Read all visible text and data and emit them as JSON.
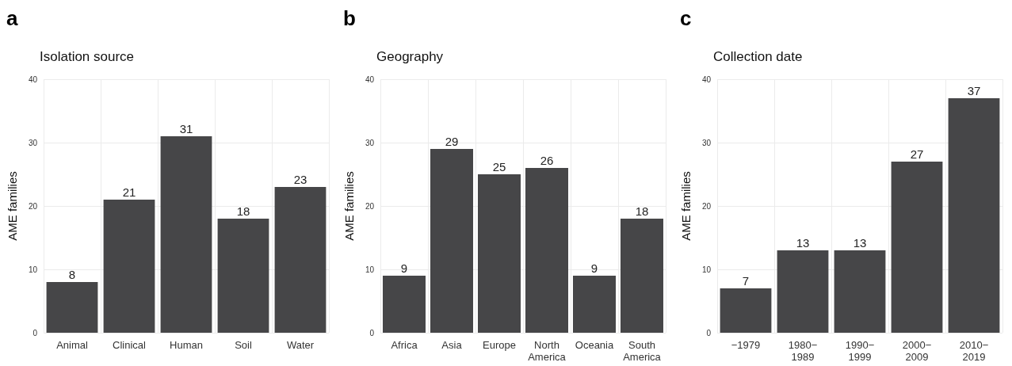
{
  "chart_data": [
    {
      "type": "bar",
      "title": "Isolation source",
      "ylabel": "AME families",
      "annotations": [
        "a"
      ],
      "categories": [
        "Animal",
        "Clinical",
        "Human",
        "Soil",
        "Water"
      ],
      "series": [
        {
          "color": "#464648",
          "values": [
            8,
            21,
            31,
            18,
            23
          ]
        }
      ],
      "ylim": [
        0,
        40
      ],
      "yticks": [
        0,
        10,
        20,
        30,
        40
      ],
      "grid": true,
      "data_labels": true
    },
    {
      "type": "bar",
      "title": "Geography",
      "ylabel": "AME families",
      "annotations": [
        "b"
      ],
      "categories": [
        "Africa",
        "Asia",
        "Europe",
        "North\nAmerica",
        "Oceania",
        "South\nAmerica"
      ],
      "series": [
        {
          "color": "#464648",
          "values": [
            9,
            29,
            25,
            26,
            9,
            18
          ]
        }
      ],
      "ylim": [
        0,
        40
      ],
      "yticks": [
        0,
        10,
        20,
        30,
        40
      ],
      "grid": true,
      "data_labels": true
    },
    {
      "type": "bar",
      "title": "Collection date",
      "ylabel": "AME families",
      "annotations": [
        "c"
      ],
      "categories": [
        "−1979",
        "1980−\n1989",
        "1990−\n1999",
        "2000−\n2009",
        "2010−\n2019"
      ],
      "series": [
        {
          "color": "#464648",
          "values": [
            7,
            13,
            13,
            27,
            37
          ]
        }
      ],
      "ylim": [
        0,
        40
      ],
      "yticks": [
        0,
        10,
        20,
        30,
        40
      ],
      "grid": true,
      "data_labels": true
    }
  ]
}
